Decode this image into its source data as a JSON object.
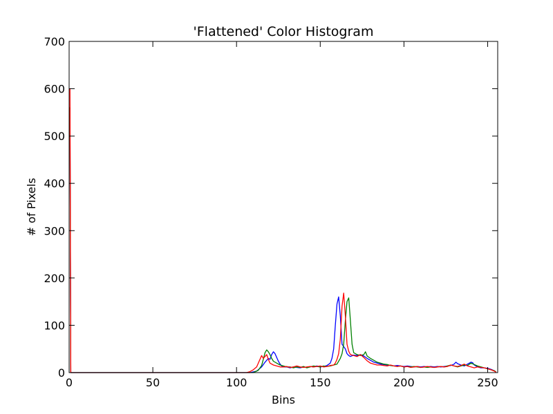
{
  "chart_data": {
    "type": "line",
    "title": "'Flattened' Color Histogram",
    "xlabel": "Bins",
    "ylabel": "# of Pixels",
    "xlim": [
      0,
      256
    ],
    "ylim": [
      0,
      700
    ],
    "x_ticks": [
      0,
      50,
      100,
      150,
      200,
      250
    ],
    "y_ticks": [
      0,
      100,
      200,
      300,
      400,
      500,
      600,
      700
    ],
    "grid": false,
    "legend": "none",
    "series": [
      {
        "color": "#0000ff",
        "points": [
          [
            0,
            560
          ],
          [
            0.5,
            560
          ],
          [
            1,
            0
          ],
          [
            100,
            0
          ],
          [
            108,
            0
          ],
          [
            112,
            3
          ],
          [
            115,
            12
          ],
          [
            117,
            22
          ],
          [
            119,
            30
          ],
          [
            120,
            28
          ],
          [
            121,
            38
          ],
          [
            122,
            44
          ],
          [
            123,
            40
          ],
          [
            124,
            32
          ],
          [
            125,
            24
          ],
          [
            126,
            18
          ],
          [
            127,
            14
          ],
          [
            128,
            12
          ],
          [
            130,
            12
          ],
          [
            132,
            10
          ],
          [
            134,
            12
          ],
          [
            136,
            11
          ],
          [
            138,
            10
          ],
          [
            140,
            12
          ],
          [
            142,
            11
          ],
          [
            144,
            13
          ],
          [
            146,
            12
          ],
          [
            148,
            14
          ],
          [
            150,
            12
          ],
          [
            152,
            13
          ],
          [
            154,
            15
          ],
          [
            156,
            20
          ],
          [
            157,
            30
          ],
          [
            158,
            50
          ],
          [
            159,
            100
          ],
          [
            160,
            145
          ],
          [
            161,
            160
          ],
          [
            162,
            120
          ],
          [
            163,
            60
          ],
          [
            164,
            55
          ],
          [
            165,
            50
          ],
          [
            166,
            40
          ],
          [
            167,
            36
          ],
          [
            168,
            34
          ],
          [
            170,
            37
          ],
          [
            172,
            36
          ],
          [
            174,
            38
          ],
          [
            176,
            35
          ],
          [
            178,
            30
          ],
          [
            180,
            26
          ],
          [
            182,
            22
          ],
          [
            184,
            20
          ],
          [
            186,
            18
          ],
          [
            188,
            17
          ],
          [
            190,
            16
          ],
          [
            192,
            15
          ],
          [
            194,
            14
          ],
          [
            196,
            15
          ],
          [
            198,
            14
          ],
          [
            200,
            13
          ],
          [
            202,
            14
          ],
          [
            204,
            13
          ],
          [
            206,
            12
          ],
          [
            208,
            13
          ],
          [
            210,
            12
          ],
          [
            212,
            13
          ],
          [
            214,
            12
          ],
          [
            216,
            13
          ],
          [
            218,
            12
          ],
          [
            220,
            13
          ],
          [
            222,
            12
          ],
          [
            224,
            13
          ],
          [
            226,
            14
          ],
          [
            228,
            15
          ],
          [
            230,
            18
          ],
          [
            231,
            22
          ],
          [
            232,
            19
          ],
          [
            234,
            16
          ],
          [
            236,
            14
          ],
          [
            238,
            18
          ],
          [
            240,
            22
          ],
          [
            241,
            21
          ],
          [
            242,
            16
          ],
          [
            244,
            12
          ],
          [
            246,
            10
          ],
          [
            248,
            10
          ],
          [
            250,
            9
          ],
          [
            252,
            7
          ],
          [
            254,
            4
          ],
          [
            255,
            1
          ]
        ]
      },
      {
        "color": "#008000",
        "points": [
          [
            0,
            560
          ],
          [
            0.5,
            560
          ],
          [
            1,
            0
          ],
          [
            100,
            0
          ],
          [
            110,
            0
          ],
          [
            113,
            5
          ],
          [
            115,
            15
          ],
          [
            116,
            28
          ],
          [
            117,
            42
          ],
          [
            118,
            48
          ],
          [
            119,
            44
          ],
          [
            120,
            38
          ],
          [
            121,
            30
          ],
          [
            122,
            24
          ],
          [
            124,
            20
          ],
          [
            126,
            16
          ],
          [
            128,
            14
          ],
          [
            130,
            12
          ],
          [
            132,
            12
          ],
          [
            134,
            10
          ],
          [
            136,
            12
          ],
          [
            138,
            11
          ],
          [
            140,
            13
          ],
          [
            142,
            10
          ],
          [
            144,
            12
          ],
          [
            146,
            14
          ],
          [
            148,
            13
          ],
          [
            150,
            12
          ],
          [
            152,
            14
          ],
          [
            154,
            13
          ],
          [
            156,
            14
          ],
          [
            158,
            16
          ],
          [
            160,
            18
          ],
          [
            161,
            24
          ],
          [
            162,
            30
          ],
          [
            163,
            40
          ],
          [
            164,
            60
          ],
          [
            165,
            110
          ],
          [
            166,
            150
          ],
          [
            167,
            158
          ],
          [
            168,
            110
          ],
          [
            169,
            60
          ],
          [
            170,
            42
          ],
          [
            172,
            38
          ],
          [
            174,
            36
          ],
          [
            176,
            38
          ],
          [
            177,
            44
          ],
          [
            178,
            35
          ],
          [
            180,
            30
          ],
          [
            182,
            26
          ],
          [
            184,
            22
          ],
          [
            186,
            20
          ],
          [
            188,
            18
          ],
          [
            190,
            17
          ],
          [
            192,
            15
          ],
          [
            194,
            14
          ],
          [
            196,
            13
          ],
          [
            198,
            14
          ],
          [
            200,
            12
          ],
          [
            202,
            13
          ],
          [
            204,
            12
          ],
          [
            206,
            13
          ],
          [
            208,
            12
          ],
          [
            210,
            11
          ],
          [
            212,
            12
          ],
          [
            214,
            11
          ],
          [
            216,
            12
          ],
          [
            218,
            11
          ],
          [
            220,
            12
          ],
          [
            222,
            13
          ],
          [
            224,
            12
          ],
          [
            226,
            14
          ],
          [
            228,
            16
          ],
          [
            230,
            14
          ],
          [
            232,
            12
          ],
          [
            234,
            14
          ],
          [
            236,
            16
          ],
          [
            238,
            15
          ],
          [
            240,
            20
          ],
          [
            242,
            17
          ],
          [
            244,
            14
          ],
          [
            246,
            12
          ],
          [
            248,
            10
          ],
          [
            250,
            8
          ],
          [
            252,
            6
          ],
          [
            254,
            4
          ],
          [
            255,
            1
          ]
        ]
      },
      {
        "color": "#ff0000",
        "points": [
          [
            0,
            600
          ],
          [
            0.5,
            600
          ],
          [
            1,
            0
          ],
          [
            100,
            0
          ],
          [
            106,
            0
          ],
          [
            108,
            2
          ],
          [
            110,
            6
          ],
          [
            112,
            12
          ],
          [
            113,
            20
          ],
          [
            114,
            28
          ],
          [
            115,
            36
          ],
          [
            116,
            30
          ],
          [
            117,
            34
          ],
          [
            118,
            38
          ],
          [
            119,
            28
          ],
          [
            120,
            20
          ],
          [
            122,
            16
          ],
          [
            124,
            14
          ],
          [
            126,
            12
          ],
          [
            128,
            12
          ],
          [
            130,
            13
          ],
          [
            132,
            11
          ],
          [
            134,
            12
          ],
          [
            136,
            14
          ],
          [
            138,
            12
          ],
          [
            140,
            11
          ],
          [
            142,
            12
          ],
          [
            144,
            13
          ],
          [
            146,
            12
          ],
          [
            148,
            13
          ],
          [
            150,
            14
          ],
          [
            152,
            12
          ],
          [
            154,
            13
          ],
          [
            156,
            15
          ],
          [
            158,
            16
          ],
          [
            159,
            20
          ],
          [
            160,
            28
          ],
          [
            161,
            40
          ],
          [
            162,
            70
          ],
          [
            163,
            140
          ],
          [
            164,
            168
          ],
          [
            165,
            120
          ],
          [
            166,
            60
          ],
          [
            167,
            45
          ],
          [
            168,
            38
          ],
          [
            170,
            36
          ],
          [
            172,
            34
          ],
          [
            174,
            38
          ],
          [
            176,
            32
          ],
          [
            178,
            25
          ],
          [
            180,
            20
          ],
          [
            182,
            18
          ],
          [
            184,
            16
          ],
          [
            186,
            16
          ],
          [
            188,
            15
          ],
          [
            190,
            14
          ],
          [
            192,
            16
          ],
          [
            194,
            14
          ],
          [
            196,
            13
          ],
          [
            198,
            14
          ],
          [
            200,
            12
          ],
          [
            202,
            13
          ],
          [
            204,
            11
          ],
          [
            206,
            12
          ],
          [
            208,
            13
          ],
          [
            210,
            11
          ],
          [
            212,
            12
          ],
          [
            214,
            13
          ],
          [
            216,
            12
          ],
          [
            218,
            11
          ],
          [
            220,
            12
          ],
          [
            222,
            13
          ],
          [
            224,
            12
          ],
          [
            226,
            13
          ],
          [
            228,
            16
          ],
          [
            230,
            14
          ],
          [
            232,
            13
          ],
          [
            234,
            15
          ],
          [
            236,
            18
          ],
          [
            238,
            14
          ],
          [
            240,
            12
          ],
          [
            242,
            10
          ],
          [
            244,
            12
          ],
          [
            246,
            11
          ],
          [
            248,
            10
          ],
          [
            250,
            8
          ],
          [
            252,
            6
          ],
          [
            254,
            3
          ],
          [
            255,
            1
          ]
        ]
      }
    ]
  }
}
